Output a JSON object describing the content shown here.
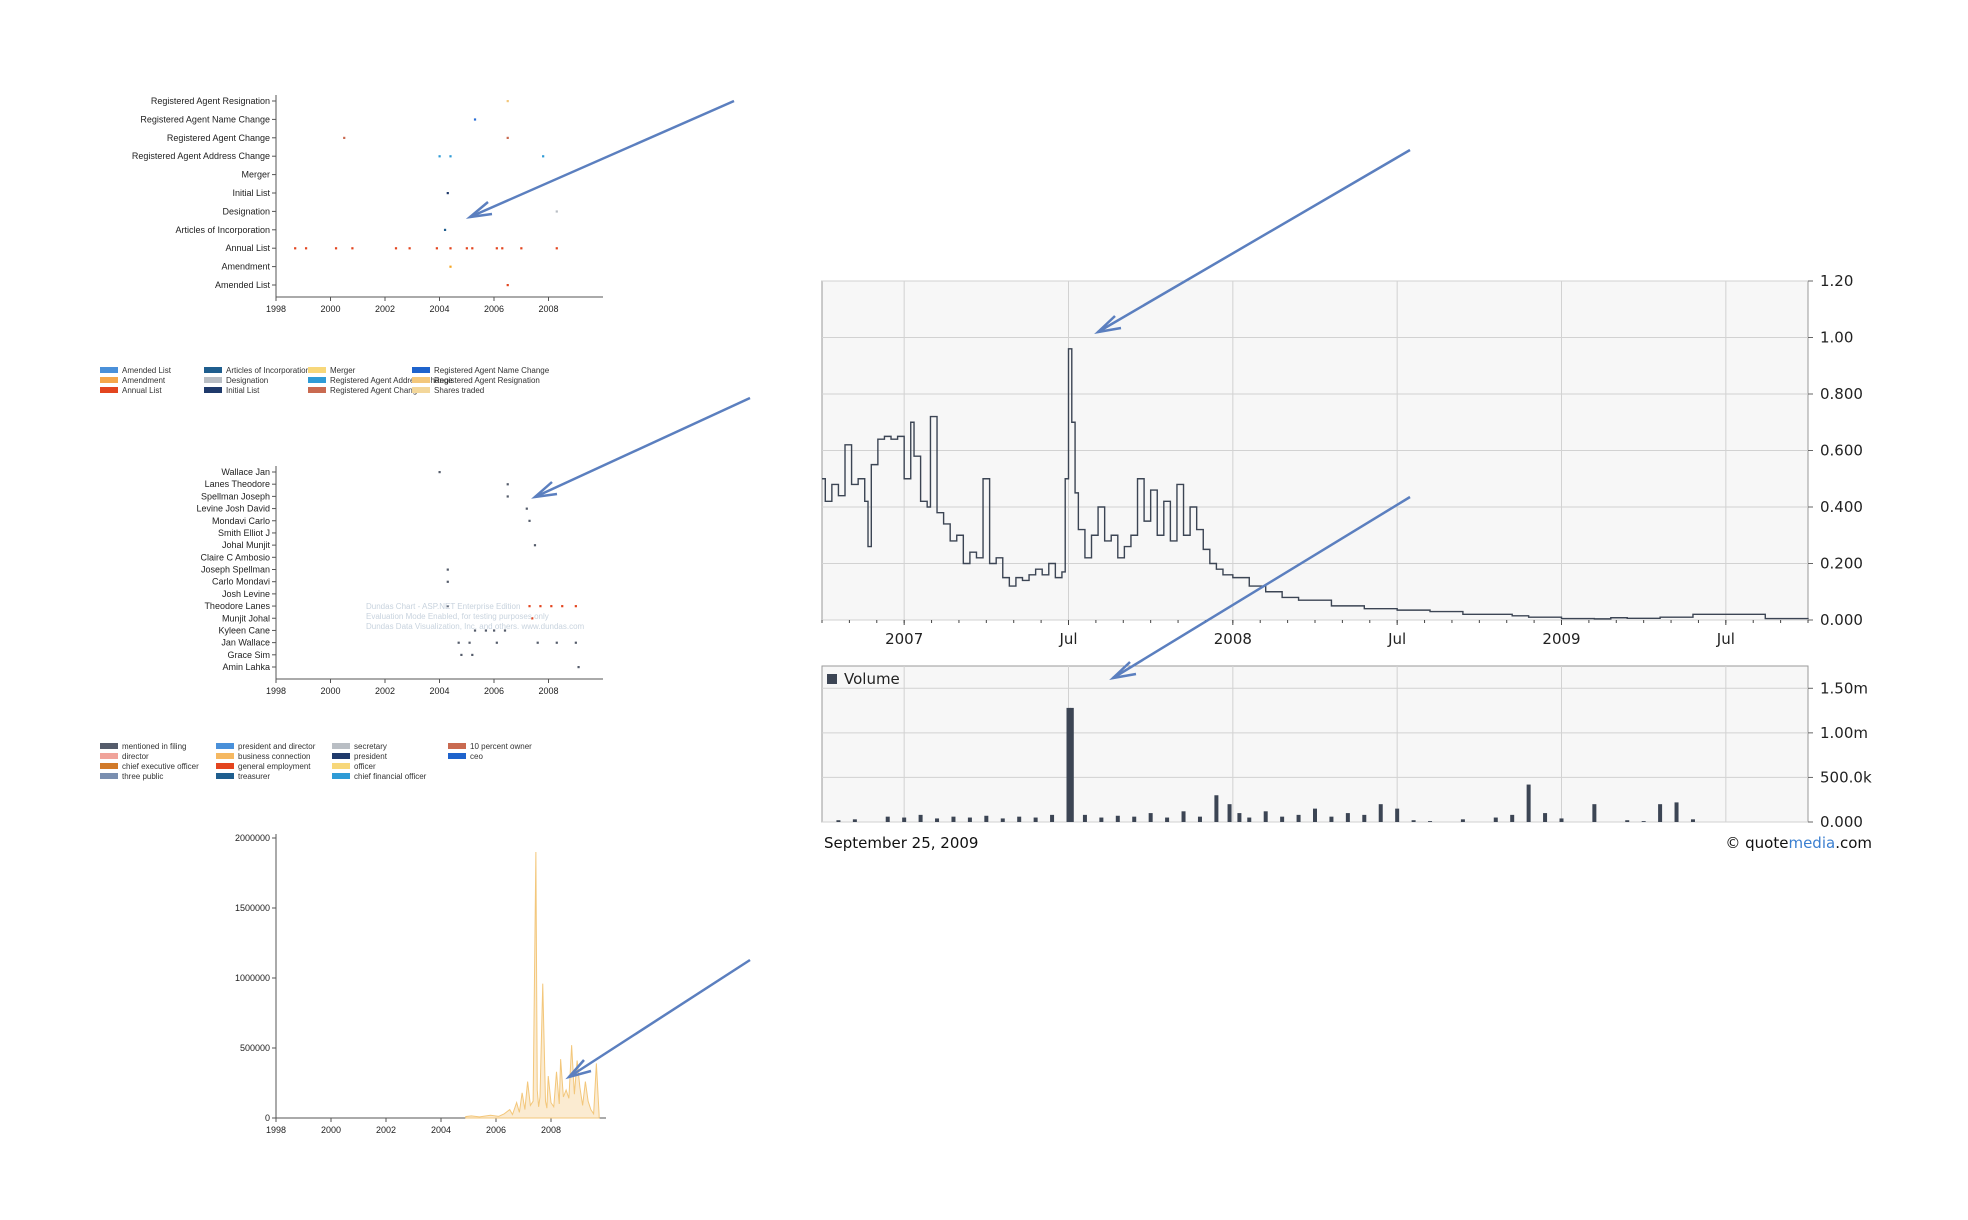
{
  "filings_chart": {
    "type": "scatter",
    "categories": [
      "Registered Agent Resignation",
      "Registered Agent Name Change",
      "Registered Agent Change",
      "Registered Agent Address Change",
      "Merger",
      "Initial List",
      "Designation",
      "Articles of Incorporation",
      "Annual List",
      "Amendment",
      "Amended List"
    ],
    "xticks": [
      "1998",
      "2000",
      "2002",
      "2004",
      "2006",
      "2008"
    ],
    "xlim": [
      1998,
      2010
    ],
    "points": [
      {
        "cat": "Registered Agent Resignation",
        "x": 2006.5,
        "color": "#f3c77b"
      },
      {
        "cat": "Registered Agent Name Change",
        "x": 2005.3,
        "color": "#2a6fd6"
      },
      {
        "cat": "Registered Agent Change",
        "x": 2000.5,
        "color": "#c96a50"
      },
      {
        "cat": "Registered Agent Change",
        "x": 2006.5,
        "color": "#c96a50"
      },
      {
        "cat": "Registered Agent Address Change",
        "x": 2004.0,
        "color": "#2f9bd6"
      },
      {
        "cat": "Registered Agent Address Change",
        "x": 2004.4,
        "color": "#2f9bd6"
      },
      {
        "cat": "Registered Agent Address Change",
        "x": 2007.8,
        "color": "#2f9bd6"
      },
      {
        "cat": "Initial List",
        "x": 2004.3,
        "color": "#1f3a6b"
      },
      {
        "cat": "Designation",
        "x": 2008.3,
        "color": "#b9bec4"
      },
      {
        "cat": "Articles of Incorporation",
        "x": 2004.2,
        "color": "#1f5e8e"
      },
      {
        "cat": "Annual List",
        "x": 1998.7,
        "color": "#e3451f"
      },
      {
        "cat": "Annual List",
        "x": 1999.1,
        "color": "#e3451f"
      },
      {
        "cat": "Annual List",
        "x": 2000.2,
        "color": "#e3451f"
      },
      {
        "cat": "Annual List",
        "x": 2000.8,
        "color": "#e3451f"
      },
      {
        "cat": "Annual List",
        "x": 2002.4,
        "color": "#e3451f"
      },
      {
        "cat": "Annual List",
        "x": 2002.9,
        "color": "#e3451f"
      },
      {
        "cat": "Annual List",
        "x": 2003.9,
        "color": "#e3451f"
      },
      {
        "cat": "Annual List",
        "x": 2004.4,
        "color": "#e3451f"
      },
      {
        "cat": "Annual List",
        "x": 2005.0,
        "color": "#e3451f"
      },
      {
        "cat": "Annual List",
        "x": 2005.2,
        "color": "#e3451f"
      },
      {
        "cat": "Annual List",
        "x": 2006.1,
        "color": "#e3451f"
      },
      {
        "cat": "Annual List",
        "x": 2006.3,
        "color": "#e3451f"
      },
      {
        "cat": "Annual List",
        "x": 2007.0,
        "color": "#e3451f"
      },
      {
        "cat": "Annual List",
        "x": 2008.3,
        "color": "#e3451f"
      },
      {
        "cat": "Amendment",
        "x": 2004.4,
        "color": "#f5a623"
      },
      {
        "cat": "Amended List",
        "x": 2006.5,
        "color": "#e3451f"
      }
    ]
  },
  "filings_legend": [
    {
      "label": "Amended List",
      "color": "#4a90d9"
    },
    {
      "label": "Amendment",
      "color": "#f5a64a"
    },
    {
      "label": "Annual List",
      "color": "#e3451f"
    },
    {
      "label": "Articles of Incorporation",
      "color": "#1f5e8e"
    },
    {
      "label": "Designation",
      "color": "#b9bec4"
    },
    {
      "label": "Initial List",
      "color": "#1f3a6b"
    },
    {
      "label": "Merger",
      "color": "#f7d77a"
    },
    {
      "label": "Registered Agent Address Change",
      "color": "#2f9bd6"
    },
    {
      "label": "Registered Agent Change",
      "color": "#c96a50"
    },
    {
      "label": "Registered Agent Name Change",
      "color": "#1e63cc"
    },
    {
      "label": "Registered Agent Resignation",
      "color": "#f3c77b"
    },
    {
      "label": "Shares traded",
      "color": "#f3d79b"
    }
  ],
  "people_chart": {
    "type": "scatter",
    "categories": [
      "Wallace Jan",
      "Lanes Theodore",
      "Spellman Joseph",
      "Levine Josh David",
      "Mondavi Carlo",
      "Smith Elliot J",
      "Johal Munjit",
      "Claire C Ambosio",
      "Joseph Spellman",
      "Carlo Mondavi",
      "Josh Levine",
      "Theodore Lanes",
      "Munjit Johal",
      "Kyleen Cane",
      "Jan Wallace",
      "Grace Sim",
      "Amin Lahka"
    ],
    "xticks": [
      "1998",
      "2000",
      "2002",
      "2004",
      "2006",
      "2008"
    ],
    "xlim": [
      1998,
      2010
    ],
    "watermark": [
      "Dundas Chart - ASP.NET Enterprise Edition",
      "Evaluation Mode Enabled, for testing purposes only",
      "Dundas Data Visualization, Inc. and others. www.dundas.com"
    ],
    "points": [
      {
        "cat": "Wallace Jan",
        "x": 2004.0,
        "color": "#555c6b"
      },
      {
        "cat": "Lanes Theodore",
        "x": 2006.5,
        "color": "#555c6b"
      },
      {
        "cat": "Spellman Joseph",
        "x": 2006.5,
        "color": "#555c6b"
      },
      {
        "cat": "Levine Josh David",
        "x": 2007.2,
        "color": "#555c6b"
      },
      {
        "cat": "Mondavi Carlo",
        "x": 2007.3,
        "color": "#555c6b"
      },
      {
        "cat": "Johal Munjit",
        "x": 2007.5,
        "color": "#555c6b"
      },
      {
        "cat": "Joseph Spellman",
        "x": 2004.3,
        "color": "#555c6b"
      },
      {
        "cat": "Carlo Mondavi",
        "x": 2004.3,
        "color": "#555c6b"
      },
      {
        "cat": "Theodore Lanes",
        "x": 2004.3,
        "color": "#555c6b"
      },
      {
        "cat": "Theodore Lanes",
        "x": 2007.3,
        "color": "#e3451f"
      },
      {
        "cat": "Theodore Lanes",
        "x": 2007.7,
        "color": "#e3451f"
      },
      {
        "cat": "Theodore Lanes",
        "x": 2008.1,
        "color": "#e3451f"
      },
      {
        "cat": "Theodore Lanes",
        "x": 2008.5,
        "color": "#e3451f"
      },
      {
        "cat": "Theodore Lanes",
        "x": 2009.0,
        "color": "#e3451f"
      },
      {
        "cat": "Munjit Johal",
        "x": 2007.4,
        "color": "#e3451f"
      },
      {
        "cat": "Kyleen Cane",
        "x": 2005.3,
        "color": "#555c6b"
      },
      {
        "cat": "Kyleen Cane",
        "x": 2005.7,
        "color": "#555c6b"
      },
      {
        "cat": "Kyleen Cane",
        "x": 2006.0,
        "color": "#555c6b"
      },
      {
        "cat": "Kyleen Cane",
        "x": 2006.4,
        "color": "#555c6b"
      },
      {
        "cat": "Jan Wallace",
        "x": 2004.7,
        "color": "#555c6b"
      },
      {
        "cat": "Jan Wallace",
        "x": 2005.1,
        "color": "#555c6b"
      },
      {
        "cat": "Jan Wallace",
        "x": 2006.1,
        "color": "#555c6b"
      },
      {
        "cat": "Jan Wallace",
        "x": 2007.6,
        "color": "#555c6b"
      },
      {
        "cat": "Jan Wallace",
        "x": 2008.3,
        "color": "#555c6b"
      },
      {
        "cat": "Jan Wallace",
        "x": 2009.0,
        "color": "#555c6b"
      },
      {
        "cat": "Grace Sim",
        "x": 2004.8,
        "color": "#555c6b"
      },
      {
        "cat": "Grace Sim",
        "x": 2005.2,
        "color": "#555c6b"
      },
      {
        "cat": "Amin Lahka",
        "x": 2009.1,
        "color": "#555c6b"
      }
    ]
  },
  "people_legend": [
    {
      "label": "mentioned in filing",
      "color": "#555c6b"
    },
    {
      "label": "director",
      "color": "#f0a39a"
    },
    {
      "label": "chief executive officer",
      "color": "#d17a2a"
    },
    {
      "label": "three public",
      "color": "#7a8fb0"
    },
    {
      "label": "president and director",
      "color": "#4a90d9"
    },
    {
      "label": "business connection",
      "color": "#f5b862"
    },
    {
      "label": "general employment",
      "color": "#e3451f"
    },
    {
      "label": "treasurer",
      "color": "#1f5e8e"
    },
    {
      "label": "secretary",
      "color": "#b9bec4"
    },
    {
      "label": "president",
      "color": "#1f3a6b"
    },
    {
      "label": "officer",
      "color": "#f7d77a"
    },
    {
      "label": "chief financial officer",
      "color": "#2f9bd6"
    },
    {
      "label": "10 percent owner",
      "color": "#c96a50"
    },
    {
      "label": "ceo",
      "color": "#1e63cc"
    }
  ],
  "shares_chart": {
    "type": "area",
    "yticks": [
      "2000000",
      "1500000",
      "1000000",
      "500000",
      "0"
    ],
    "xticks": [
      "1998",
      "2000",
      "2002",
      "2004",
      "2006",
      "2008"
    ],
    "xlim": [
      1998,
      2010
    ],
    "ylim": [
      0,
      2000000
    ],
    "color": "#f3c77b",
    "x": [
      2004.9,
      2005.1,
      2005.4,
      2005.8,
      2006.1,
      2006.3,
      2006.5,
      2006.6,
      2006.75,
      2006.85,
      2006.95,
      2007.05,
      2007.15,
      2007.25,
      2007.35,
      2007.45,
      2007.5,
      2007.55,
      2007.6,
      2007.7,
      2007.8,
      2007.85,
      2007.9,
      2008.0,
      2008.1,
      2008.2,
      2008.3,
      2008.35,
      2008.45,
      2008.55,
      2008.65,
      2008.75,
      2008.85,
      2008.95,
      2009.05,
      2009.15,
      2009.25,
      2009.35,
      2009.45,
      2009.55,
      2009.65,
      2009.75
    ],
    "values": [
      10000,
      15000,
      8000,
      20000,
      12000,
      30000,
      60000,
      25000,
      110000,
      40000,
      180000,
      60000,
      260000,
      90000,
      120000,
      1900000,
      200000,
      80000,
      150000,
      960000,
      120000,
      70000,
      300000,
      110000,
      80000,
      330000,
      100000,
      420000,
      150000,
      200000,
      140000,
      520000,
      170000,
      410000,
      220000,
      90000,
      260000,
      120000,
      60000,
      30000,
      390000,
      20000
    ]
  },
  "quote_chart": {
    "type": "line",
    "date_label": "September 25, 2009",
    "brand_pre": "quote",
    "brand_mid": "media",
    "brand_post": ".com",
    "copyright": "©",
    "xticks": [
      {
        "label": "2007",
        "x": 2007.0
      },
      {
        "label": "Jul",
        "x": 2007.5
      },
      {
        "label": "2008",
        "x": 2008.0
      },
      {
        "label": "Jul",
        "x": 2008.5
      },
      {
        "label": "2009",
        "x": 2009.0
      },
      {
        "label": "Jul",
        "x": 2009.5
      }
    ],
    "xlim": [
      2006.75,
      2009.75
    ],
    "ylim": [
      0,
      1.2
    ],
    "yticks": [
      "1.20",
      "1.00",
      "0.800",
      "0.600",
      "0.400",
      "0.200",
      "0.000"
    ],
    "price": {
      "x": [
        2006.75,
        2006.76,
        2006.78,
        2006.8,
        2006.82,
        2006.84,
        2006.86,
        2006.88,
        2006.89,
        2006.9,
        2006.92,
        2006.94,
        2006.96,
        2006.98,
        2007.0,
        2007.02,
        2007.03,
        2007.05,
        2007.07,
        2007.08,
        2007.1,
        2007.12,
        2007.14,
        2007.16,
        2007.18,
        2007.2,
        2007.22,
        2007.24,
        2007.26,
        2007.28,
        2007.3,
        2007.32,
        2007.34,
        2007.36,
        2007.38,
        2007.4,
        2007.42,
        2007.44,
        2007.46,
        2007.48,
        2007.49,
        2007.5,
        2007.51,
        2007.52,
        2007.53,
        2007.55,
        2007.57,
        2007.59,
        2007.61,
        2007.63,
        2007.65,
        2007.67,
        2007.69,
        2007.71,
        2007.73,
        2007.75,
        2007.77,
        2007.79,
        2007.81,
        2007.83,
        2007.85,
        2007.87,
        2007.89,
        2007.91,
        2007.93,
        2007.95,
        2007.97,
        2008.0,
        2008.05,
        2008.1,
        2008.15,
        2008.2,
        2008.3,
        2008.4,
        2008.5,
        2008.6,
        2008.7,
        2008.8,
        2008.85,
        2008.9,
        2009.0,
        2009.1,
        2009.15,
        2009.2,
        2009.3,
        2009.35,
        2009.4,
        2009.6,
        2009.62,
        2009.75
      ],
      "values": [
        0.5,
        0.42,
        0.48,
        0.44,
        0.62,
        0.48,
        0.5,
        0.42,
        0.26,
        0.55,
        0.64,
        0.65,
        0.64,
        0.65,
        0.5,
        0.7,
        0.58,
        0.42,
        0.4,
        0.72,
        0.38,
        0.34,
        0.28,
        0.3,
        0.2,
        0.24,
        0.22,
        0.5,
        0.2,
        0.22,
        0.15,
        0.12,
        0.15,
        0.14,
        0.16,
        0.18,
        0.16,
        0.2,
        0.15,
        0.17,
        0.5,
        0.96,
        0.7,
        0.45,
        0.32,
        0.22,
        0.3,
        0.4,
        0.28,
        0.3,
        0.22,
        0.26,
        0.3,
        0.5,
        0.35,
        0.46,
        0.3,
        0.42,
        0.28,
        0.48,
        0.3,
        0.4,
        0.32,
        0.25,
        0.2,
        0.18,
        0.16,
        0.15,
        0.12,
        0.1,
        0.08,
        0.07,
        0.05,
        0.04,
        0.035,
        0.03,
        0.02,
        0.02,
        0.015,
        0.01,
        0.005,
        0.004,
        0.008,
        0.006,
        0.01,
        0.01,
        0.02,
        0.02,
        0.005,
        0.004
      ]
    },
    "volume": {
      "label": "Volume",
      "yticks": [
        "1.50m",
        "1.00m",
        "500.0k",
        "0.000"
      ],
      "ylim": [
        0,
        1.75
      ],
      "x": [
        2006.8,
        2006.85,
        2006.95,
        2007.0,
        2007.05,
        2007.1,
        2007.15,
        2007.2,
        2007.25,
        2007.3,
        2007.35,
        2007.4,
        2007.45,
        2007.5,
        2007.51,
        2007.55,
        2007.6,
        2007.65,
        2007.7,
        2007.75,
        2007.8,
        2007.85,
        2007.9,
        2007.95,
        2007.99,
        2008.02,
        2008.05,
        2008.1,
        2008.15,
        2008.2,
        2008.25,
        2008.3,
        2008.35,
        2008.4,
        2008.45,
        2008.5,
        2008.55,
        2008.6,
        2008.7,
        2008.8,
        2008.85,
        2008.9,
        2008.95,
        2009.0,
        2009.1,
        2009.2,
        2009.25,
        2009.3,
        2009.35,
        2009.4
      ],
      "values": [
        0.02,
        0.03,
        0.06,
        0.05,
        0.08,
        0.04,
        0.06,
        0.05,
        0.07,
        0.04,
        0.06,
        0.05,
        0.08,
        1.28,
        1.28,
        0.08,
        0.05,
        0.07,
        0.06,
        0.1,
        0.05,
        0.12,
        0.06,
        0.3,
        0.2,
        0.1,
        0.05,
        0.12,
        0.06,
        0.08,
        0.15,
        0.06,
        0.1,
        0.08,
        0.2,
        0.15,
        0.02,
        0.01,
        0.03,
        0.05,
        0.08,
        0.42,
        0.1,
        0.04,
        0.2,
        0.02,
        0.01,
        0.2,
        0.22,
        0.03
      ]
    }
  }
}
